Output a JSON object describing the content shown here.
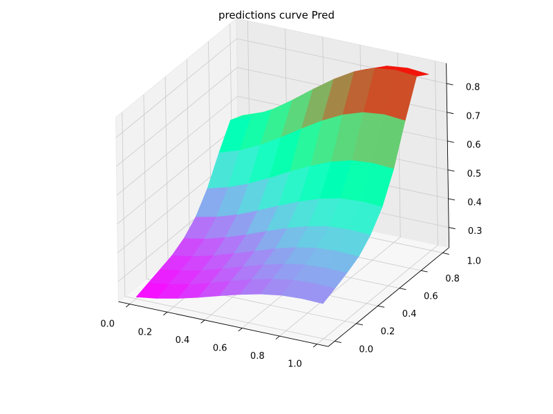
{
  "chart_data": {
    "type": "surface3d",
    "title": "predictions curve Pred",
    "xlabel": "",
    "ylabel": "",
    "zlabel": "",
    "xlim": [
      0,
      1
    ],
    "ylim": [
      0,
      1
    ],
    "zlim": [
      0.23,
      0.87
    ],
    "x_ticks": [
      "0.0",
      "0.2",
      "0.4",
      "0.6",
      "0.8",
      "1.0"
    ],
    "y_ticks": [
      "0.0",
      "0.2",
      "0.4",
      "0.6",
      "0.8",
      "1.0"
    ],
    "z_ticks": [
      "0.3",
      "0.4",
      "0.5",
      "0.6",
      "0.7",
      "0.8"
    ],
    "grid": true,
    "colormap": "rainbow",
    "x": [
      0.0,
      0.1111,
      0.2222,
      0.3333,
      0.4444,
      0.5556,
      0.6667,
      0.7778,
      0.8889,
      1.0
    ],
    "y": [
      0.0,
      0.1111,
      0.2222,
      0.3333,
      0.4444,
      0.5556,
      0.6667,
      0.7778,
      0.8889,
      1.0
    ],
    "z": [
      [
        0.236,
        0.247,
        0.262,
        0.281,
        0.302,
        0.322,
        0.339,
        0.35,
        0.354,
        0.352
      ],
      [
        0.25,
        0.261,
        0.277,
        0.297,
        0.319,
        0.34,
        0.357,
        0.369,
        0.373,
        0.371
      ],
      [
        0.264,
        0.275,
        0.291,
        0.312,
        0.335,
        0.357,
        0.375,
        0.388,
        0.392,
        0.39
      ],
      [
        0.278,
        0.29,
        0.308,
        0.331,
        0.355,
        0.379,
        0.399,
        0.412,
        0.416,
        0.413
      ],
      [
        0.303,
        0.317,
        0.337,
        0.362,
        0.39,
        0.416,
        0.438,
        0.453,
        0.457,
        0.454
      ],
      [
        0.343,
        0.359,
        0.382,
        0.412,
        0.444,
        0.474,
        0.499,
        0.516,
        0.521,
        0.517
      ],
      [
        0.408,
        0.428,
        0.456,
        0.491,
        0.529,
        0.564,
        0.594,
        0.614,
        0.62,
        0.615
      ],
      [
        0.498,
        0.522,
        0.556,
        0.598,
        0.644,
        0.687,
        0.723,
        0.747,
        0.755,
        0.749
      ],
      [
        0.578,
        0.606,
        0.645,
        0.694,
        0.747,
        0.797,
        0.839,
        0.866,
        0.875,
        0.869
      ],
      [
        0.56,
        0.587,
        0.625,
        0.673,
        0.724,
        0.773,
        0.813,
        0.84,
        0.848,
        0.842
      ]
    ]
  }
}
